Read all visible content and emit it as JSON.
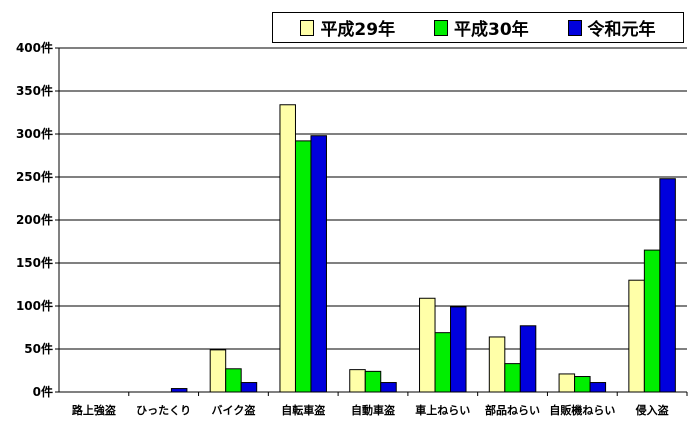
{
  "chart_data": {
    "type": "bar",
    "categories": [
      "路上強盗",
      "ひったくり",
      "バイク盗",
      "自転車盗",
      "自動車盗",
      "車上ねらい",
      "部品ねらい",
      "自販機ねらい",
      "侵入盗"
    ],
    "series": [
      {
        "name": "平成29年",
        "color": "#ffffa8",
        "values": [
          0,
          0,
          49,
          334,
          26,
          109,
          64,
          21,
          130
        ]
      },
      {
        "name": "平成30年",
        "color": "#00ee00",
        "values": [
          0,
          0,
          27,
          292,
          24,
          69,
          33,
          18,
          165
        ]
      },
      {
        "name": "令和元年",
        "color": "#0000dd",
        "values": [
          0,
          4,
          11,
          298,
          11,
          99,
          77,
          11,
          248
        ]
      }
    ],
    "y_ticks": [
      "0件",
      "50件",
      "100件",
      "150件",
      "200件",
      "250件",
      "300件",
      "350件",
      "400件"
    ],
    "ylim": [
      0,
      400
    ],
    "y_step": 50,
    "grid": true,
    "legend_position": "top-right"
  }
}
